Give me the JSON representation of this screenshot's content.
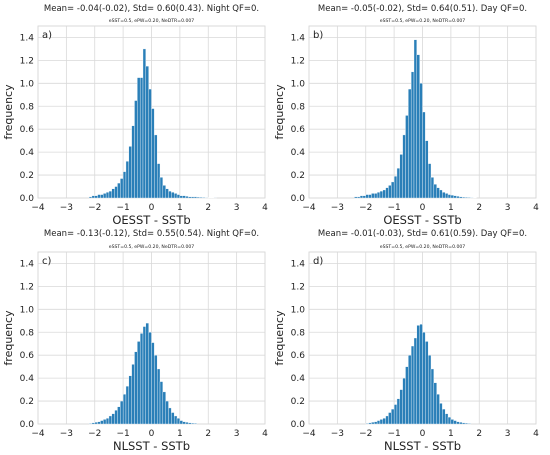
{
  "style": {
    "bar_color": "#2a7fb8",
    "bar_edge": "#ffffff",
    "grid_color": "#d9d9d9",
    "background": "#ffffff"
  },
  "chart_data": [
    {
      "type": "bar",
      "panel": "a)",
      "title": "Mean= -0.04(-0.02), Std= 0.60(0.43). Night QF=0.",
      "subtitle": "eSST=0.5, ePW=0.20, NeDTR=0.007",
      "xlabel": "OESST - SSTb",
      "ylabel": "frequency",
      "xlim": [
        -4,
        4
      ],
      "ylim": [
        0,
        1.5
      ],
      "xticks": [
        "−4",
        "−3",
        "−2",
        "−1",
        "0",
        "1",
        "2",
        "3",
        "4"
      ],
      "yticks": [
        "0.0",
        "0.2",
        "0.4",
        "0.6",
        "0.8",
        "1.0",
        "1.2",
        "1.4"
      ],
      "grid": true,
      "bin_start": -2.2,
      "bin_width": 0.1,
      "values": [
        0.01,
        0.02,
        0.02,
        0.03,
        0.03,
        0.04,
        0.05,
        0.06,
        0.08,
        0.1,
        0.13,
        0.17,
        0.23,
        0.32,
        0.45,
        0.63,
        0.85,
        1.05,
        1.05,
        1.3,
        1.15,
        0.95,
        0.78,
        0.55,
        0.3,
        0.18,
        0.11,
        0.08,
        0.06,
        0.05,
        0.04,
        0.03,
        0.02,
        0.02,
        0.015,
        0.01,
        0.01,
        0.01,
        0.008,
        0.006,
        0.005,
        0.004,
        0.003,
        0.002,
        0.001
      ]
    },
    {
      "type": "bar",
      "panel": "b)",
      "title": "Mean= -0.05(-0.02), Std= 0.64(0.51). Day QF=0.",
      "subtitle": "eSST=0.5, ePW=0.20, NeDTR=0.007",
      "xlabel": "OESST - SSTb",
      "ylabel": "frequency",
      "xlim": [
        -4,
        4
      ],
      "ylim": [
        0,
        1.5
      ],
      "xticks": [
        "−4",
        "−3",
        "−2",
        "−1",
        "0",
        "1",
        "2",
        "3",
        "4"
      ],
      "yticks": [
        "0.0",
        "0.2",
        "0.4",
        "0.6",
        "0.8",
        "1.0",
        "1.2",
        "1.4"
      ],
      "grid": true,
      "bin_start": -2.4,
      "bin_width": 0.1,
      "values": [
        0.01,
        0.01,
        0.02,
        0.02,
        0.03,
        0.03,
        0.04,
        0.04,
        0.05,
        0.06,
        0.07,
        0.09,
        0.11,
        0.14,
        0.19,
        0.26,
        0.38,
        0.55,
        0.72,
        0.95,
        1.1,
        1.38,
        1.25,
        1.0,
        0.75,
        0.5,
        0.3,
        0.18,
        0.12,
        0.09,
        0.07,
        0.05,
        0.04,
        0.03,
        0.025,
        0.02,
        0.015,
        0.01,
        0.008,
        0.006,
        0.005,
        0.004,
        0.003
      ]
    },
    {
      "type": "bar",
      "panel": "c)",
      "title": "Mean= -0.13(-0.12), Std= 0.55(0.54). Night QF=0.",
      "subtitle": "eSST=0.5, ePW=0.20, NeDTR=0.007",
      "xlabel": "NLSST - SSTb",
      "ylabel": "frequency",
      "xlim": [
        -4,
        4
      ],
      "ylim": [
        0,
        1.5
      ],
      "xticks": [
        "−4",
        "−3",
        "−2",
        "−1",
        "0",
        "1",
        "2",
        "3",
        "4"
      ],
      "yticks": [
        "0.0",
        "0.2",
        "0.4",
        "0.6",
        "0.8",
        "1.0",
        "1.2",
        "1.4"
      ],
      "grid": true,
      "bin_start": -2.2,
      "bin_width": 0.1,
      "values": [
        0.005,
        0.01,
        0.015,
        0.02,
        0.03,
        0.04,
        0.05,
        0.07,
        0.09,
        0.12,
        0.15,
        0.2,
        0.26,
        0.33,
        0.42,
        0.52,
        0.63,
        0.72,
        0.79,
        0.85,
        0.88,
        0.8,
        0.71,
        0.6,
        0.48,
        0.37,
        0.28,
        0.2,
        0.14,
        0.1,
        0.07,
        0.05,
        0.03,
        0.02,
        0.015,
        0.01,
        0.008,
        0.006
      ]
    },
    {
      "type": "bar",
      "panel": "d)",
      "title": "Mean= -0.01(-0.03), Std= 0.61(0.59). Day QF=0.",
      "subtitle": "eSST=0.5, ePW=0.20, NeDTR=0.007",
      "xlabel": "NLSST - SSTb",
      "ylabel": "frequency",
      "xlim": [
        -4,
        4
      ],
      "ylim": [
        0,
        1.5
      ],
      "xticks": [
        "−4",
        "−3",
        "−2",
        "−1",
        "0",
        "1",
        "2",
        "3",
        "4"
      ],
      "yticks": [
        "0.0",
        "0.2",
        "0.4",
        "0.6",
        "0.8",
        "1.0",
        "1.2",
        "1.4"
      ],
      "grid": true,
      "bin_start": -2.0,
      "bin_width": 0.1,
      "values": [
        0.005,
        0.01,
        0.015,
        0.02,
        0.03,
        0.04,
        0.05,
        0.07,
        0.1,
        0.13,
        0.17,
        0.22,
        0.3,
        0.4,
        0.5,
        0.6,
        0.68,
        0.75,
        0.86,
        0.87,
        0.8,
        0.72,
        0.6,
        0.48,
        0.36,
        0.26,
        0.18,
        0.13,
        0.09,
        0.06,
        0.04,
        0.03,
        0.02,
        0.015,
        0.01,
        0.008,
        0.005
      ]
    }
  ]
}
